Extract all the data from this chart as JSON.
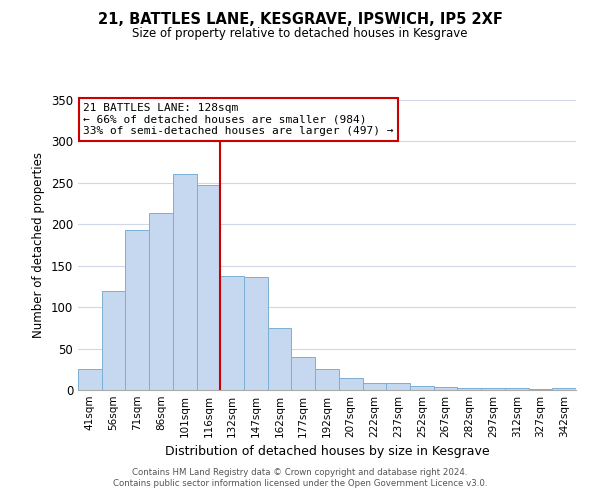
{
  "title": "21, BATTLES LANE, KESGRAVE, IPSWICH, IP5 2XF",
  "subtitle": "Size of property relative to detached houses in Kesgrave",
  "xlabel": "Distribution of detached houses by size in Kesgrave",
  "ylabel": "Number of detached properties",
  "bar_labels": [
    "41sqm",
    "56sqm",
    "71sqm",
    "86sqm",
    "101sqm",
    "116sqm",
    "132sqm",
    "147sqm",
    "162sqm",
    "177sqm",
    "192sqm",
    "207sqm",
    "222sqm",
    "237sqm",
    "252sqm",
    "267sqm",
    "282sqm",
    "297sqm",
    "312sqm",
    "327sqm",
    "342sqm"
  ],
  "bar_values": [
    25,
    120,
    193,
    214,
    261,
    248,
    137,
    136,
    75,
    40,
    25,
    15,
    8,
    8,
    5,
    4,
    2,
    3,
    2,
    1,
    2
  ],
  "bar_color": "#c5d8f0",
  "bar_edgecolor": "#7bafd4",
  "vline_index": 6,
  "vline_color": "#cc0000",
  "ylim": [
    0,
    350
  ],
  "yticks": [
    0,
    50,
    100,
    150,
    200,
    250,
    300,
    350
  ],
  "annotation_title": "21 BATTLES LANE: 128sqm",
  "annotation_line1": "← 66% of detached houses are smaller (984)",
  "annotation_line2": "33% of semi-detached houses are larger (497) →",
  "annotation_box_color": "#ffffff",
  "annotation_box_edgecolor": "#cc0000",
  "footer_line1": "Contains HM Land Registry data © Crown copyright and database right 2024.",
  "footer_line2": "Contains public sector information licensed under the Open Government Licence v3.0.",
  "background_color": "#ffffff",
  "grid_color": "#d0d8e8"
}
